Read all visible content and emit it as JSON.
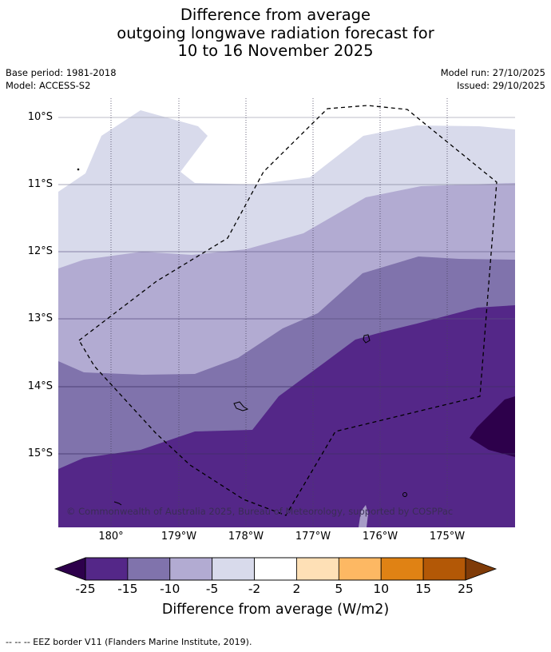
{
  "title": {
    "line1": "Difference from average",
    "line2": "outgoing longwave radiation forecast for",
    "line3": "10 to 16 November 2025"
  },
  "meta": {
    "base_period": "Base period: 1981-2018",
    "model": "Model: ACCESS-S2",
    "model_run": "Model run: 27/10/2025",
    "issued": "Issued: 29/10/2025"
  },
  "map": {
    "lat_labels": [
      "10°S",
      "11°S",
      "12°S",
      "13°S",
      "14°S",
      "15°S"
    ],
    "lon_labels": [
      "180°",
      "179°W",
      "178°W",
      "177°W",
      "176°W",
      "175°W"
    ],
    "copyright": "© Commonwealth of Australia 2025, Bureau of Meteorology, supported by COSPPac",
    "colors": {
      "below_-25": "#2d004b",
      "-25_-15": "#542788",
      "-15_-10": "#8073ac",
      "-10_-5": "#b2abd2",
      "-5_-2": "#d8daeb",
      "-2_2": "#ffffff"
    }
  },
  "colorbar": {
    "ticks": [
      "-25",
      "-15",
      "-10",
      "-5",
      "-2",
      "2",
      "5",
      "10",
      "15",
      "25"
    ],
    "colors": [
      "#542788",
      "#8073ac",
      "#b2abd2",
      "#d8daeb",
      "#ffffff",
      "#fee0b6",
      "#fdb863",
      "#e08214",
      "#b35806"
    ],
    "under_color": "#2d004b",
    "over_color": "#7f3b08",
    "label": "Difference from average (W/m2)"
  },
  "footnote": "--  --  -- EEZ border V11 (Flanders Marine Institute, 2019)."
}
